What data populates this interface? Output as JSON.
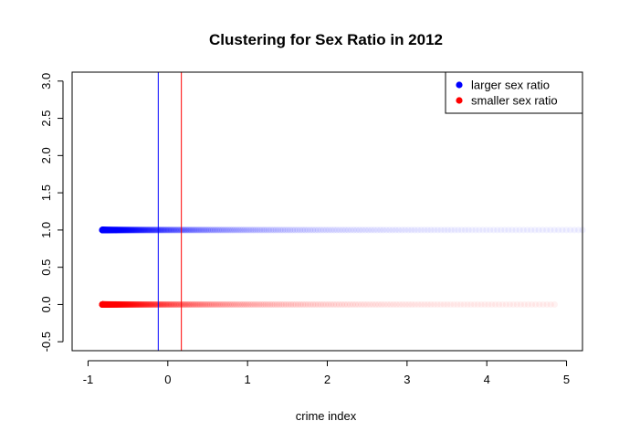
{
  "chart_data": {
    "type": "scatter",
    "title": "Clustering for Sex Ratio in 2012",
    "xlabel": "crime index",
    "ylabel": "",
    "xlim": [
      -1.2,
      5.2
    ],
    "ylim": [
      -0.62,
      3.12
    ],
    "x_ticks": [
      -1,
      0,
      1,
      2,
      3,
      4,
      5
    ],
    "y_ticks": [
      -0.5,
      0.0,
      0.5,
      1.0,
      1.5,
      2.0,
      2.5,
      3.0
    ],
    "x_tick_labels": [
      "-1",
      "0",
      "1",
      "2",
      "3",
      "4",
      "5"
    ],
    "y_tick_labels": [
      "-0.5",
      "0.0",
      "0.5",
      "1.0",
      "1.5",
      "2.0",
      "2.5",
      "3.0"
    ],
    "grid": false,
    "legend_position": "top-right",
    "series": [
      {
        "name": "larger sex ratio",
        "color": "#0000ff",
        "y": 1.0,
        "x_range": [
          -0.82,
          5.2
        ]
      },
      {
        "name": "smaller sex ratio",
        "color": "#ff0000",
        "y": 0.0,
        "x_range": [
          -0.82,
          4.85
        ]
      }
    ],
    "vertical_lines": [
      {
        "x": -0.12,
        "color": "#0000ff"
      },
      {
        "x": 0.17,
        "color": "#ff0000"
      }
    ]
  }
}
